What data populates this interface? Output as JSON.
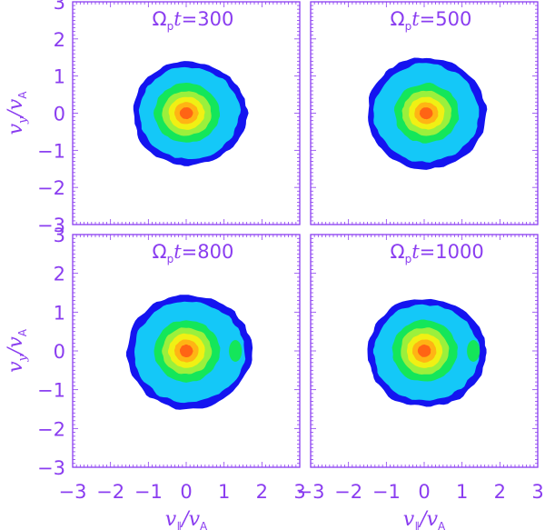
{
  "figure": {
    "axis_color": "#8a3df0",
    "contour_colors": [
      "#1414f0",
      "#14c8f8",
      "#14e65a",
      "#9bf03c",
      "#f0f014",
      "#ffb414",
      "#ff6414"
    ],
    "x_axis_label": "v∥/vA",
    "y_axis_label": "vy/vA"
  },
  "chart_data": {
    "type": "heatmap",
    "description": "Filled contour plots of proton velocity distribution in (v_parallel, v_y) plane at four times",
    "xlabel": "v∥/vA",
    "ylabel": "vy/vA",
    "xlim": [
      -3,
      3
    ],
    "ylim": [
      -3,
      3
    ],
    "x_ticks": [
      "-3",
      "-2",
      "-1",
      "0",
      "1",
      "2",
      "3"
    ],
    "y_ticks": [
      "-3",
      "-2",
      "-1",
      "0",
      "1",
      "2",
      "3"
    ],
    "grid": false,
    "legend": null,
    "panels": [
      {
        "title": "Ωpt=300",
        "title_prefix": "Ω",
        "title_sub": "p",
        "title_var": "t",
        "title_val": "=300",
        "core_center": [
          0.0,
          0.0
        ],
        "outer_extent_x": [
          -1.4,
          1.6
        ],
        "outer_extent_y": [
          -1.4,
          1.4
        ],
        "secondary_blob": null
      },
      {
        "title": "Ωpt=500",
        "title_prefix": "Ω",
        "title_sub": "p",
        "title_var": "t",
        "title_val": "=500",
        "core_center": [
          0.05,
          0.0
        ],
        "outer_extent_x": [
          -1.5,
          1.65
        ],
        "outer_extent_y": [
          -1.5,
          1.5
        ],
        "secondary_blob": null
      },
      {
        "title": "Ωpt=800",
        "title_prefix": "Ω",
        "title_sub": "p",
        "title_var": "t",
        "title_val": "=800",
        "core_center": [
          0.0,
          0.0
        ],
        "outer_extent_x": [
          -1.55,
          1.75
        ],
        "outer_extent_y": [
          -1.5,
          1.45
        ],
        "secondary_blob": [
          1.3,
          0.0
        ]
      },
      {
        "title": "Ωpt=1000",
        "title_prefix": "Ω",
        "title_sub": "p",
        "title_var": "t",
        "title_val": "=1000",
        "core_center": [
          0.0,
          0.0
        ],
        "outer_extent_x": [
          -1.5,
          1.65
        ],
        "outer_extent_y": [
          -1.45,
          1.35
        ],
        "secondary_blob": [
          1.3,
          0.0
        ]
      }
    ]
  }
}
